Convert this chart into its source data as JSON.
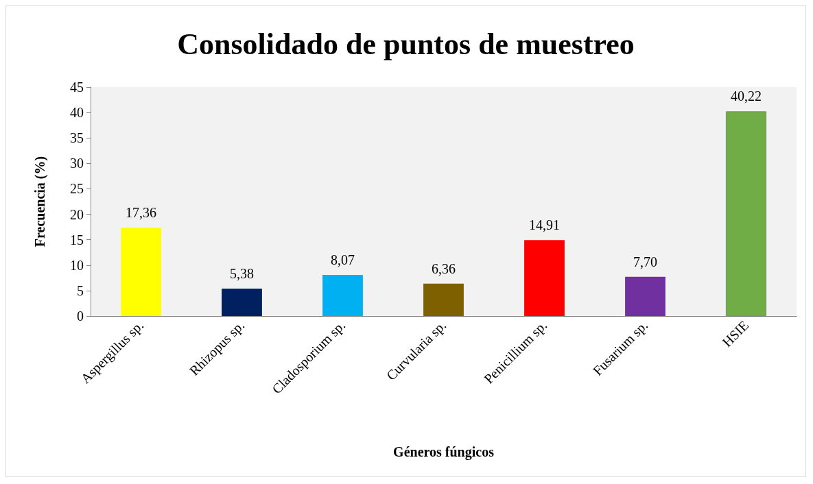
{
  "chart_data": {
    "type": "bar",
    "title": "Consolidado de puntos de muestreo",
    "xlabel": "Géneros fúngicos",
    "ylabel": "Frecuencia (%)",
    "categories": [
      "Aspergillus sp.",
      "Rhizopus sp.",
      "Cladosporium sp.",
      "Curvularia sp.",
      "Penicillium sp.",
      "Fusarium sp.",
      "HSIE"
    ],
    "values": [
      17.36,
      5.38,
      8.07,
      6.36,
      14.91,
      7.7,
      40.22
    ],
    "value_labels": [
      "17,36",
      "5,38",
      "8,07",
      "6,36",
      "14,91",
      "7,70",
      "40,22"
    ],
    "colors": [
      "#ffff00",
      "#002060",
      "#00b0f0",
      "#7f6000",
      "#ff0000",
      "#7030a0",
      "#70ad47"
    ],
    "ylim": [
      0,
      45
    ],
    "yticks": [
      0,
      5,
      10,
      15,
      20,
      25,
      30,
      35,
      40,
      45
    ],
    "grid": false
  }
}
